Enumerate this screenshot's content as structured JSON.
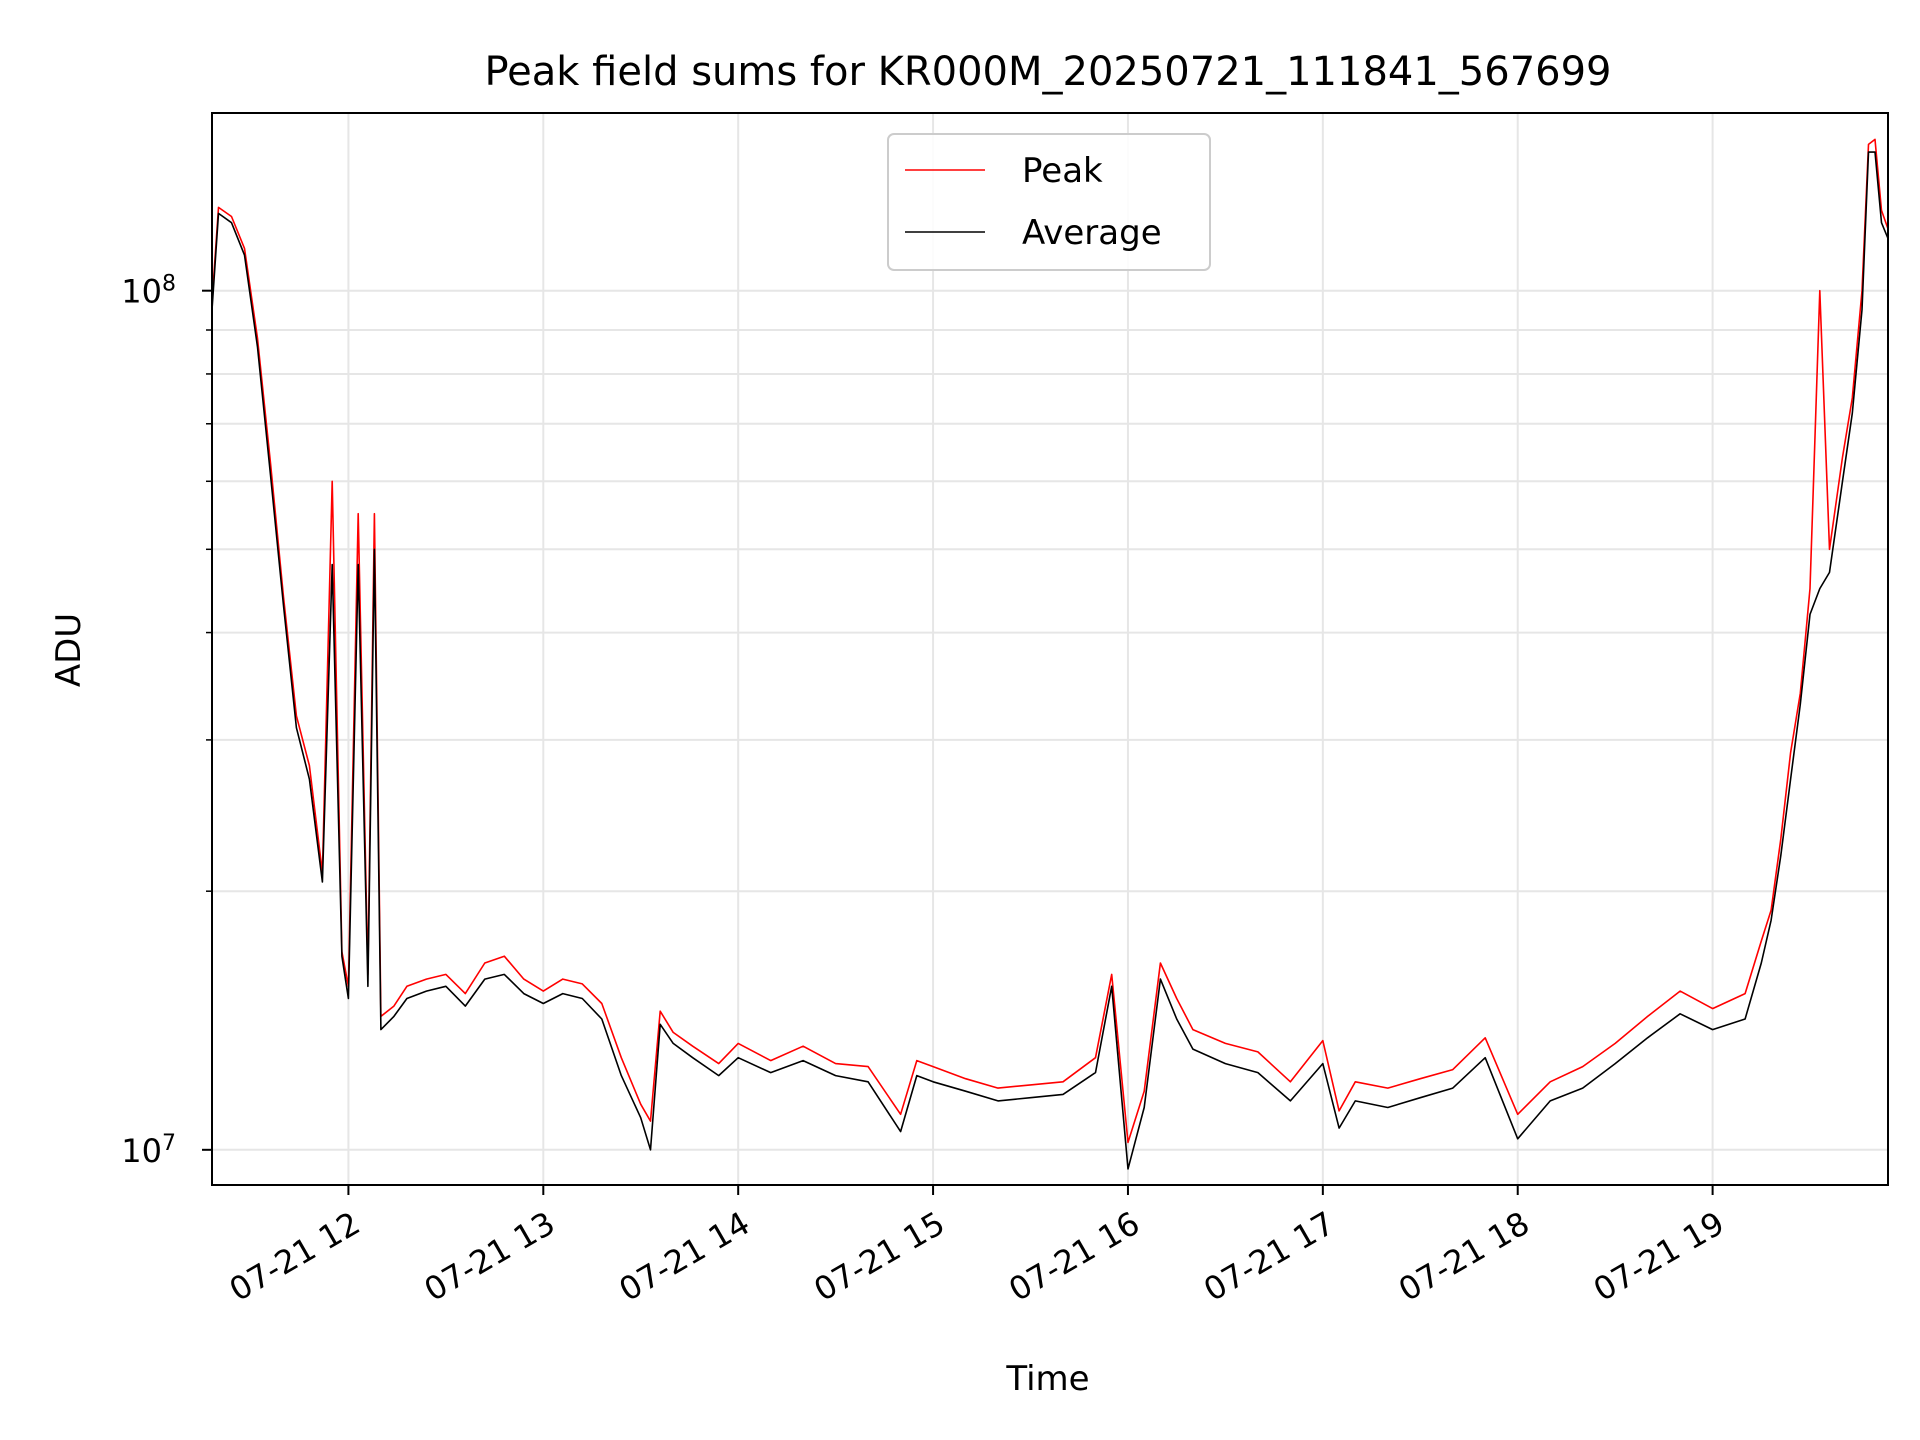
{
  "chart_data": {
    "type": "line",
    "title": "Peak field sums for KR000M_20250721_111841_567699",
    "xlabel": "Time",
    "ylabel": "ADU",
    "y_scale": "log",
    "ylim": [
      9100000,
      161000000
    ],
    "xlim": [
      "07-21 11:18",
      "07-21 19:54"
    ],
    "grid": true,
    "grid_minor_y": true,
    "legend_position": "upper-center",
    "x_ticks": [
      {
        "label": "07-21 12",
        "value": "12:00"
      },
      {
        "label": "07-21 13",
        "value": "13:00"
      },
      {
        "label": "07-21 14",
        "value": "14:00"
      },
      {
        "label": "07-21 15",
        "value": "15:00"
      },
      {
        "label": "07-21 16",
        "value": "16:00"
      },
      {
        "label": "07-21 17",
        "value": "17:00"
      },
      {
        "label": "07-21 18",
        "value": "18:00"
      },
      {
        "label": "07-21 19",
        "value": "19:00"
      }
    ],
    "y_ticks": [
      {
        "base": "10",
        "exp": "7",
        "value": 10000000
      },
      {
        "base": "10",
        "exp": "8",
        "value": 100000000
      }
    ],
    "x": [
      "11:18",
      "11:20",
      "11:24",
      "11:28",
      "11:32",
      "11:36",
      "11:40",
      "11:44",
      "11:48",
      "11:52",
      "11:55",
      "11:58",
      "12:00",
      "12:03",
      "12:06",
      "12:08",
      "12:10",
      "12:14",
      "12:18",
      "12:24",
      "12:30",
      "12:36",
      "12:42",
      "12:48",
      "12:54",
      "13:00",
      "13:06",
      "13:12",
      "13:18",
      "13:24",
      "13:30",
      "13:33",
      "13:36",
      "13:40",
      "13:46",
      "13:54",
      "14:00",
      "14:10",
      "14:20",
      "14:30",
      "14:40",
      "14:50",
      "14:55",
      "15:00",
      "15:10",
      "15:20",
      "15:30",
      "15:40",
      "15:50",
      "15:55",
      "16:00",
      "16:05",
      "16:10",
      "16:15",
      "16:20",
      "16:30",
      "16:40",
      "16:50",
      "17:00",
      "17:05",
      "17:10",
      "17:20",
      "17:30",
      "17:40",
      "17:50",
      "18:00",
      "18:10",
      "18:20",
      "18:30",
      "18:40",
      "18:50",
      "19:00",
      "19:10",
      "19:15",
      "19:18",
      "19:21",
      "19:24",
      "19:27",
      "19:30",
      "19:33",
      "19:36",
      "19:40",
      "19:43",
      "19:46",
      "19:48",
      "19:50",
      "19:52",
      "19:54"
    ],
    "series": [
      {
        "name": "Peak",
        "color": "#ff0000",
        "values": [
          97000000,
          125000000,
          122000000,
          112000000,
          88000000,
          63000000,
          44000000,
          32000000,
          28000000,
          21000000,
          60000000,
          17000000,
          15500000,
          55000000,
          16000000,
          55000000,
          14300000,
          14700000,
          15500000,
          15800000,
          16000000,
          15200000,
          16500000,
          16800000,
          15800000,
          15300000,
          15800000,
          15600000,
          14800000,
          12800000,
          11300000,
          10800000,
          14500000,
          13700000,
          13200000,
          12600000,
          13300000,
          12700000,
          13200000,
          12600000,
          12500000,
          11000000,
          12700000,
          12500000,
          12100000,
          11800000,
          11900000,
          12000000,
          12800000,
          16000000,
          10200000,
          11700000,
          16500000,
          15000000,
          13800000,
          13300000,
          13000000,
          12000000,
          13400000,
          11100000,
          12000000,
          11800000,
          12100000,
          12400000,
          13500000,
          11000000,
          12000000,
          12500000,
          13300000,
          14300000,
          15300000,
          14600000,
          15200000,
          17500000,
          19000000,
          23000000,
          29000000,
          34000000,
          45000000,
          100000000,
          50000000,
          64000000,
          75000000,
          100000000,
          148000000,
          150000000,
          124000000,
          118000000
        ]
      },
      {
        "name": "Average",
        "color": "#000000",
        "values": [
          95000000,
          123000000,
          120000000,
          110000000,
          86000000,
          61000000,
          43000000,
          31000000,
          27000000,
          20500000,
          48000000,
          16800000,
          15000000,
          48000000,
          15500000,
          50000000,
          13800000,
          14300000,
          15000000,
          15300000,
          15500000,
          14700000,
          15800000,
          16000000,
          15200000,
          14800000,
          15200000,
          15000000,
          14200000,
          12200000,
          10900000,
          10000000,
          14000000,
          13300000,
          12800000,
          12200000,
          12800000,
          12300000,
          12700000,
          12200000,
          12000000,
          10500000,
          12200000,
          12000000,
          11700000,
          11400000,
          11500000,
          11600000,
          12300000,
          15500000,
          9500000,
          11200000,
          15800000,
          14200000,
          13100000,
          12600000,
          12300000,
          11400000,
          12600000,
          10600000,
          11400000,
          11200000,
          11500000,
          11800000,
          12800000,
          10300000,
          11400000,
          11800000,
          12600000,
          13500000,
          14400000,
          13800000,
          14200000,
          16500000,
          18500000,
          22000000,
          27000000,
          33000000,
          42000000,
          45000000,
          47000000,
          60000000,
          72000000,
          95000000,
          145000000,
          145000000,
          120000000,
          115000000
        ]
      }
    ]
  }
}
